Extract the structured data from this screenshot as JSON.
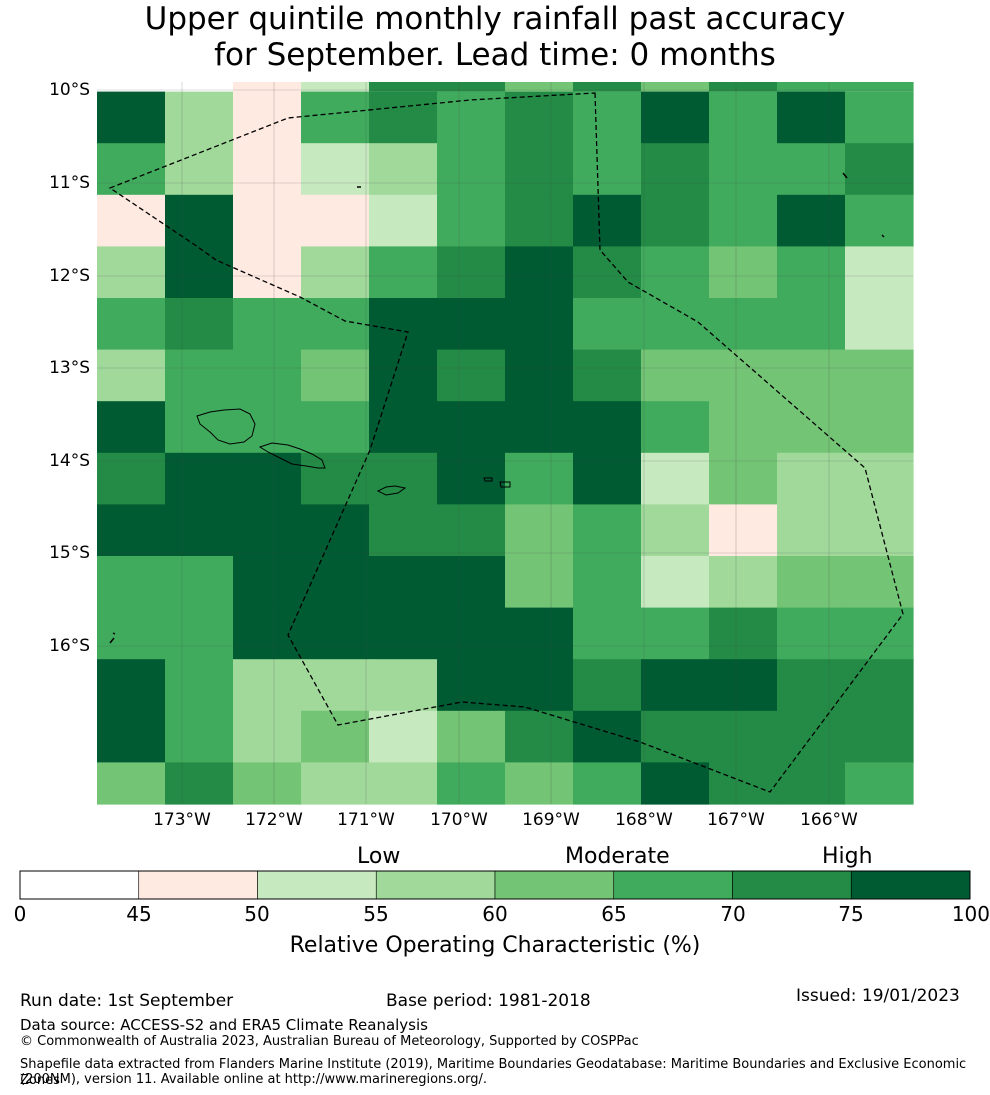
{
  "title": {
    "line1": "Upper quintile monthly rainfall past accuracy",
    "line2": "for September. Lead time: 0 months"
  },
  "map": {
    "lat_labels": [
      "10°S",
      "11°S",
      "12°S",
      "13°S",
      "14°S",
      "15°S",
      "16°S"
    ],
    "lon_labels": [
      "173°W",
      "172°W",
      "171°W",
      "170°W",
      "169°W",
      "168°W",
      "167°W",
      "166°W"
    ],
    "grid_roc_percent": [
      [
        40,
        40,
        45,
        50,
        72,
        72,
        62,
        72,
        60,
        72,
        68,
        68
      ],
      [
        100,
        57,
        48,
        68,
        72,
        68,
        72,
        68,
        100,
        68,
        100,
        68
      ],
      [
        68,
        57,
        48,
        52,
        57,
        68,
        72,
        68,
        72,
        68,
        68,
        72
      ],
      [
        48,
        100,
        48,
        48,
        52,
        68,
        72,
        100,
        72,
        68,
        100,
        68
      ],
      [
        57,
        100,
        48,
        57,
        68,
        72,
        100,
        72,
        68,
        62,
        68,
        52
      ],
      [
        68,
        72,
        68,
        68,
        100,
        100,
        100,
        68,
        68,
        68,
        68,
        52
      ],
      [
        57,
        68,
        68,
        62,
        100,
        72,
        100,
        72,
        62,
        62,
        62,
        62
      ],
      [
        100,
        68,
        68,
        68,
        100,
        100,
        100,
        100,
        68,
        62,
        62,
        62
      ],
      [
        72,
        100,
        100,
        72,
        72,
        100,
        68,
        100,
        52,
        62,
        57,
        57
      ],
      [
        100,
        100,
        100,
        100,
        72,
        72,
        62,
        68,
        57,
        48,
        57,
        57
      ],
      [
        68,
        68,
        100,
        100,
        100,
        100,
        62,
        68,
        52,
        57,
        62,
        62
      ],
      [
        68,
        68,
        100,
        100,
        100,
        100,
        100,
        68,
        68,
        72,
        68,
        68
      ],
      [
        100,
        68,
        57,
        57,
        57,
        100,
        100,
        72,
        100,
        100,
        72,
        72
      ],
      [
        100,
        68,
        57,
        62,
        52,
        62,
        72,
        100,
        72,
        72,
        72,
        72
      ],
      [
        62,
        72,
        62,
        57,
        57,
        68,
        62,
        68,
        100,
        72,
        72,
        68
      ]
    ]
  },
  "colorbar": {
    "categories": [
      "Low",
      "Moderate",
      "High"
    ],
    "ticks": [
      "0",
      "45",
      "50",
      "55",
      "60",
      "65",
      "70",
      "75",
      "100"
    ],
    "colors": [
      "#ffffff",
      "#feeae1",
      "#c7e9c0",
      "#a1d99b",
      "#74c476",
      "#41ab5d",
      "#238b45",
      "#005a32"
    ],
    "title": "Relative Operating Characteristic (%)"
  },
  "footer": {
    "run_date": "Run date: 1st September",
    "base_period": "Base period: 1981-2018",
    "issued": "Issued: 19/01/2023",
    "data_source": "Data source: ACCESS-S2 and ERA5 Climate Reanalysis",
    "copyright": "© Commonwealth of Australia 2023, Australian Bureau of Meteorology, Supported by COSPPac",
    "shapefile_line1": "Shapefile data extracted from Flanders Marine Institute (2019), Maritime Boundaries Geodatabase: Maritime Boundaries and Exclusive Economic Zones",
    "shapefile_line2": "(200NM), version 11. Available online at http://www.marineregions.org/."
  }
}
